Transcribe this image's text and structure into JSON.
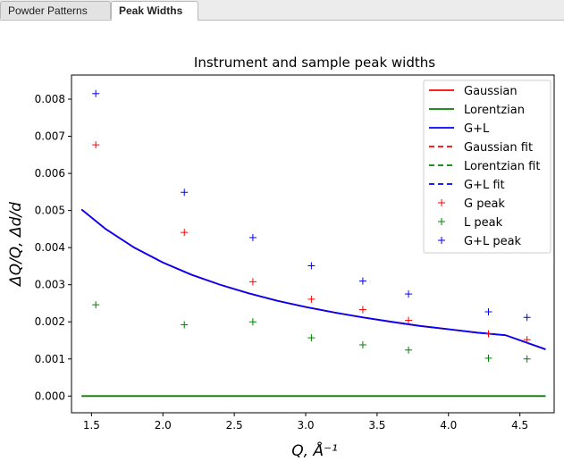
{
  "tabs": [
    {
      "label": "Powder Patterns",
      "active": false
    },
    {
      "label": "Peak Widths",
      "active": true
    }
  ],
  "chart_data": {
    "type": "line",
    "title": "Instrument and sample peak widths",
    "xlabel": "Q, Å⁻¹",
    "ylabel": "ΔQ/Q, Δd/d",
    "xlim": [
      1.36,
      4.74
    ],
    "ylim": [
      -0.00045,
      0.00865
    ],
    "xticks": [
      "1.5",
      "2.0",
      "2.5",
      "3.0",
      "3.5",
      "4.0",
      "4.5"
    ],
    "xtick_values": [
      1.5,
      2.0,
      2.5,
      3.0,
      3.5,
      4.0,
      4.5
    ],
    "yticks": [
      "0.000",
      "0.001",
      "0.002",
      "0.003",
      "0.004",
      "0.005",
      "0.006",
      "0.007",
      "0.008"
    ],
    "ytick_values": [
      0.0,
      0.001,
      0.002,
      0.003,
      0.004,
      0.005,
      0.006,
      0.007,
      0.008
    ],
    "grid": false,
    "legend_position": "top-right",
    "lines": [
      {
        "name": "Gaussian",
        "color": "#ff0000",
        "style": "solid",
        "x": [
          1.43,
          1.6,
          1.8,
          2.0,
          2.2,
          2.4,
          2.6,
          2.8,
          3.0,
          3.2,
          3.4,
          3.6,
          3.8,
          4.0,
          4.2,
          4.4,
          4.68
        ],
        "y": [
          0.00503,
          0.0045,
          0.004,
          0.0036,
          0.00327,
          0.003,
          0.00277,
          0.00257,
          0.0024,
          0.00225,
          0.00212,
          0.002,
          0.00189,
          0.0018,
          0.00171,
          0.00164,
          0.00126
        ]
      },
      {
        "name": "Lorentzian",
        "color": "#008000",
        "style": "solid",
        "x": [
          1.43,
          4.68
        ],
        "y": [
          0.0,
          0.0
        ]
      },
      {
        "name": "G+L",
        "color": "#0000ff",
        "style": "solid",
        "x": [
          1.43,
          1.6,
          1.8,
          2.0,
          2.2,
          2.4,
          2.6,
          2.8,
          3.0,
          3.2,
          3.4,
          3.6,
          3.8,
          4.0,
          4.2,
          4.4,
          4.68
        ],
        "y": [
          0.00503,
          0.0045,
          0.004,
          0.0036,
          0.00327,
          0.003,
          0.00277,
          0.00257,
          0.0024,
          0.00225,
          0.00212,
          0.002,
          0.00189,
          0.0018,
          0.00171,
          0.00164,
          0.00126
        ]
      },
      {
        "name": "Gaussian fit",
        "color": "#ff0000",
        "style": "dashed",
        "x": [],
        "y": []
      },
      {
        "name": "Lorentzian fit",
        "color": "#008000",
        "style": "dashed",
        "x": [],
        "y": []
      },
      {
        "name": "G+L fit",
        "color": "#0000ff",
        "style": "dashed",
        "x": [],
        "y": []
      }
    ],
    "points": [
      {
        "name": "G peak",
        "color": "#ff0000",
        "x": [
          1.53,
          2.15,
          2.63,
          3.04,
          3.4,
          3.72,
          4.28,
          4.55
        ],
        "y": [
          0.00677,
          0.00441,
          0.00308,
          0.00261,
          0.00233,
          0.00204,
          0.00168,
          0.00152
        ]
      },
      {
        "name": "L peak",
        "color": "#008000",
        "x": [
          1.53,
          2.15,
          2.63,
          3.04,
          3.4,
          3.72,
          4.28,
          4.55
        ],
        "y": [
          0.00246,
          0.00192,
          0.002,
          0.00157,
          0.00138,
          0.00124,
          0.00102,
          0.001
        ]
      },
      {
        "name": "G+L peak",
        "color": "#0000ff",
        "x": [
          1.53,
          2.15,
          2.63,
          3.04,
          3.4,
          3.72,
          4.28,
          4.55
        ],
        "y": [
          0.00815,
          0.00549,
          0.00427,
          0.00351,
          0.0031,
          0.00275,
          0.00227,
          0.00212
        ]
      }
    ],
    "legend": [
      "Gaussian",
      "Lorentzian",
      "G+L",
      "Gaussian fit",
      "Lorentzian fit",
      "G+L fit",
      "G peak",
      "L peak",
      "G+L peak"
    ]
  }
}
